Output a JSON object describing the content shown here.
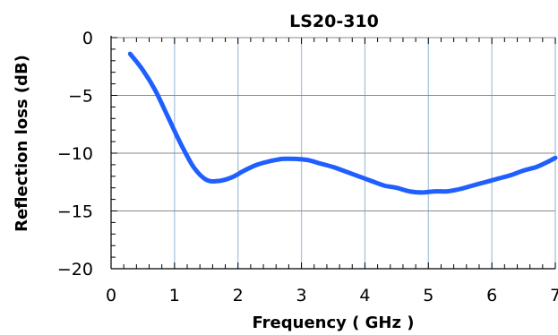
{
  "chart_data": {
    "type": "line",
    "title": "LS20-310",
    "xlabel": "Frequency ( GHz )",
    "ylabel": "Reflection loss (dB)",
    "xlim": [
      0,
      7
    ],
    "ylim": [
      -20,
      0
    ],
    "xticks": [
      "0",
      "1",
      "2",
      "3",
      "4",
      "5",
      "6",
      "7"
    ],
    "yticks": [
      "0",
      "−5",
      "−10",
      "−15",
      "−20"
    ],
    "grid": "vertical and horizontal major gridlines",
    "series": [
      {
        "color": "#1f5fff",
        "x": [
          0.3,
          0.5,
          0.7,
          0.9,
          1.1,
          1.3,
          1.5,
          1.7,
          1.9,
          2.1,
          2.3,
          2.5,
          2.7,
          2.9,
          3.1,
          3.3,
          3.5,
          3.7,
          3.9,
          4.1,
          4.3,
          4.5,
          4.7,
          4.9,
          5.1,
          5.3,
          5.5,
          5.7,
          5.9,
          6.1,
          6.3,
          6.5,
          6.7,
          6.9,
          7.0
        ],
        "y": [
          -1.4,
          -2.8,
          -4.6,
          -6.9,
          -9.2,
          -11.2,
          -12.3,
          -12.4,
          -12.1,
          -11.5,
          -11.0,
          -10.7,
          -10.5,
          -10.5,
          -10.6,
          -10.9,
          -11.2,
          -11.6,
          -12.0,
          -12.4,
          -12.8,
          -13.0,
          -13.3,
          -13.4,
          -13.3,
          -13.3,
          -13.1,
          -12.8,
          -12.5,
          -12.2,
          -11.9,
          -11.5,
          -11.2,
          -10.7,
          -10.4
        ]
      }
    ]
  }
}
